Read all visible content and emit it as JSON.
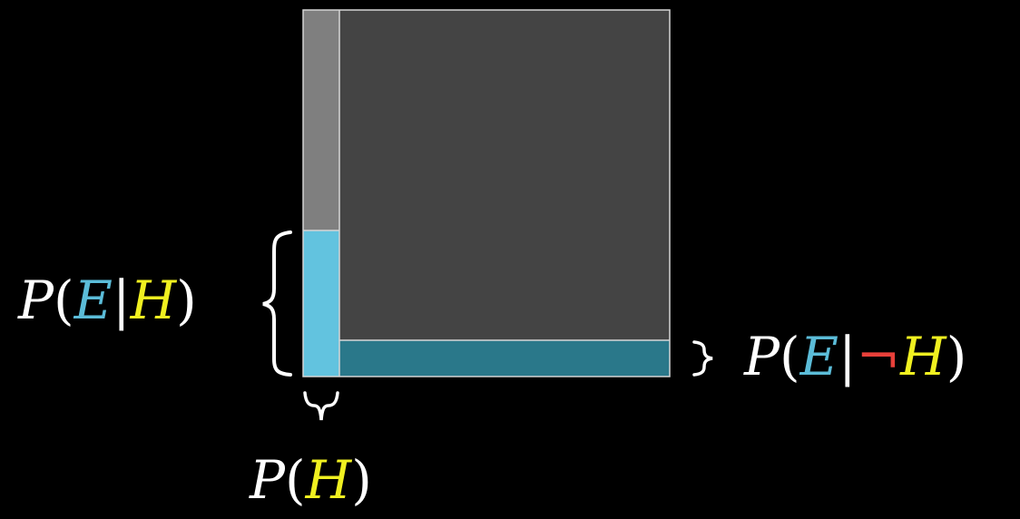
{
  "colors": {
    "background": "#000000",
    "hypothesis_region": "#7f7f7f",
    "not_hypothesis_region": "#444444",
    "evidence_given_h": "#62c3df",
    "evidence_given_not_h": "#2a788a",
    "outline": "#d6d6d6",
    "text": "#ffffff",
    "evidence_symbol": "#5bbcd8",
    "hypothesis_symbol": "#f0f020",
    "negation_symbol": "#e8403a"
  },
  "labels": {
    "p_e_given_h": {
      "P": "P",
      "open": "(",
      "E": "E",
      "bar": "|",
      "H": "H",
      "close": ")"
    },
    "p_e_given_not_h": {
      "P": "P",
      "open": "(",
      "E": "E",
      "bar": "|",
      "neg": "¬",
      "H": "H",
      "close": ")"
    },
    "p_h": {
      "P": "P",
      "open": "(",
      "H": "H",
      "close": ")"
    }
  },
  "proportions": {
    "p_h": 0.1,
    "p_e_given_h": 0.4,
    "p_e_given_not_h": 0.1
  }
}
